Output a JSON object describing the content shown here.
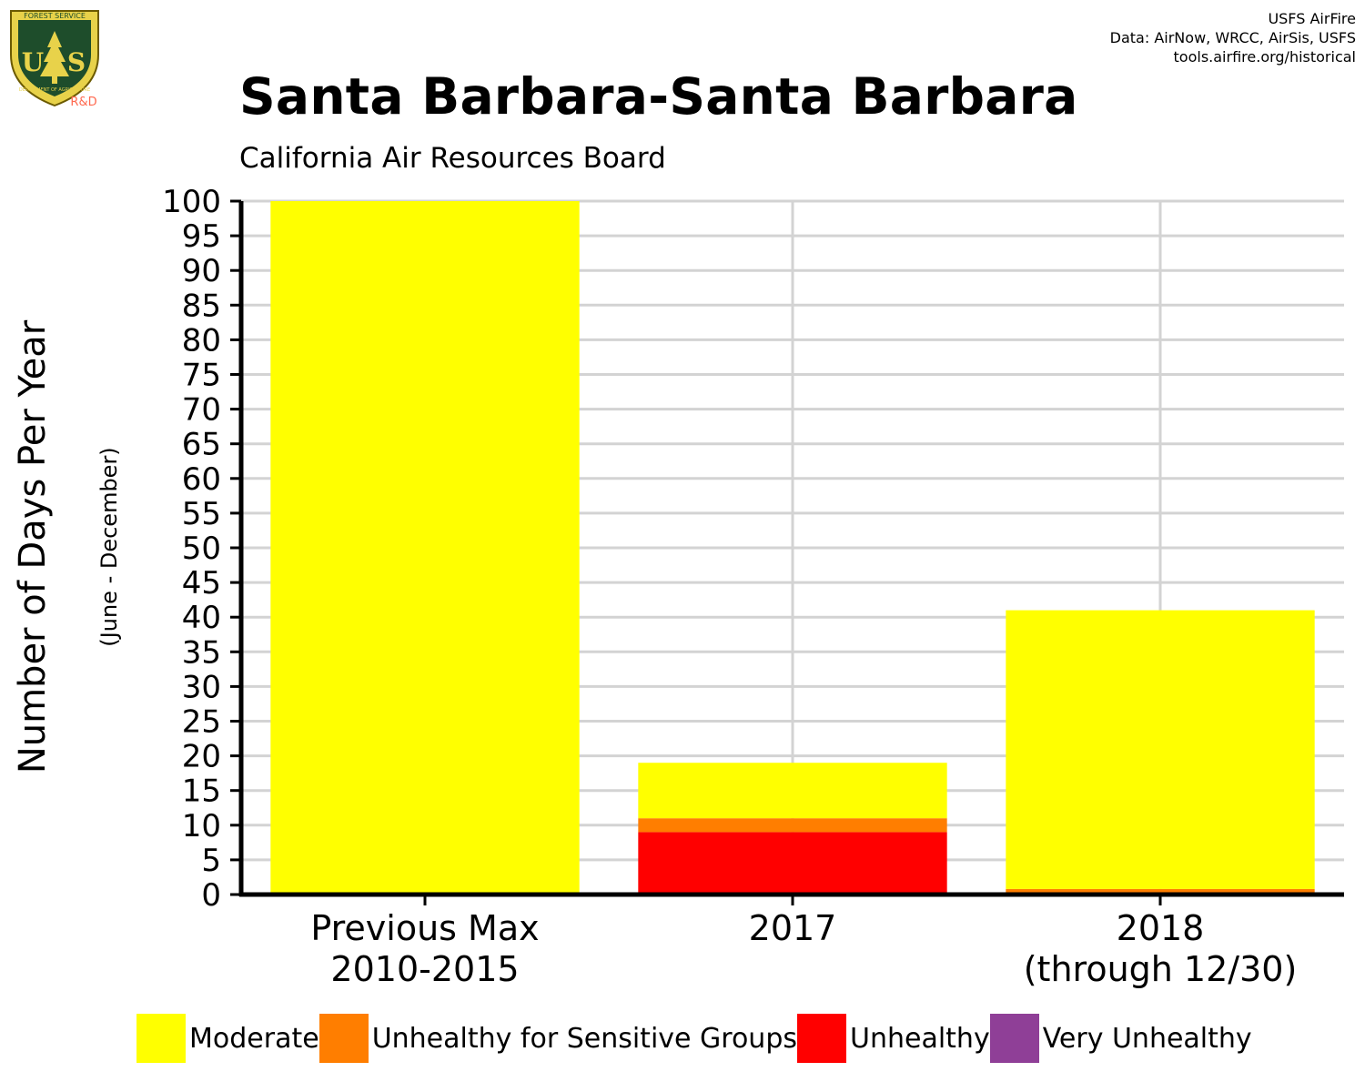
{
  "header": {
    "title": "Santa Barbara-Santa Barbara",
    "subtitle": "California Air Resources Board",
    "credits": [
      "USFS AirFire",
      "Data: AirNow, WRCC, AirSis, USFS",
      "tools.airfire.org/historical"
    ],
    "logo": {
      "icon": "forest-service-shield-icon",
      "arc_top": "FOREST SERVICE",
      "letters": "U S",
      "arc_bottom": "DEPARTMENT OF AGRICULTURE",
      "tag": "R&D"
    }
  },
  "colors": {
    "moderate": "#ffff00",
    "usg": "#ff7e00",
    "unhealthy": "#ff0000",
    "very_unhealthy": "#8f3f97",
    "grid": "#d3d3d3",
    "axis": "#000000"
  },
  "chart_data": {
    "type": "bar",
    "stacked": true,
    "title": "Santa Barbara-Santa Barbara",
    "subtitle": "California Air Resources Board",
    "ylabel": "Number of Days Per Year",
    "ylabel_sub": "(June - December)",
    "xlabel": "",
    "ylim": [
      0,
      100
    ],
    "yticks": [
      0,
      5,
      10,
      15,
      20,
      25,
      30,
      35,
      40,
      45,
      50,
      55,
      60,
      65,
      70,
      75,
      80,
      85,
      90,
      95,
      100
    ],
    "grid": true,
    "legend_position": "bottom",
    "categories": [
      {
        "line1": "Previous Max",
        "line2": "2010-2015"
      },
      {
        "line1": "2017",
        "line2": ""
      },
      {
        "line1": "2018",
        "line2": "(through 12/30)"
      }
    ],
    "series": [
      {
        "name": "Very Unhealthy",
        "color": "#8f3f97",
        "values": [
          0,
          0.3,
          0
        ]
      },
      {
        "name": "Unhealthy",
        "color": "#ff0000",
        "values": [
          0,
          8.7,
          0.3
        ]
      },
      {
        "name": "Unhealthy for Sensitive Groups",
        "color": "#ff7e00",
        "values": [
          0,
          2,
          0.5
        ]
      },
      {
        "name": "Moderate",
        "color": "#ffff00",
        "values": [
          100,
          8,
          40.2
        ]
      }
    ],
    "legend": [
      {
        "label": "Moderate",
        "color": "#ffff00"
      },
      {
        "label": "Unhealthy for Sensitive Groups",
        "color": "#ff7e00"
      },
      {
        "label": "Unhealthy",
        "color": "#ff0000"
      },
      {
        "label": "Very Unhealthy",
        "color": "#8f3f97"
      }
    ]
  }
}
